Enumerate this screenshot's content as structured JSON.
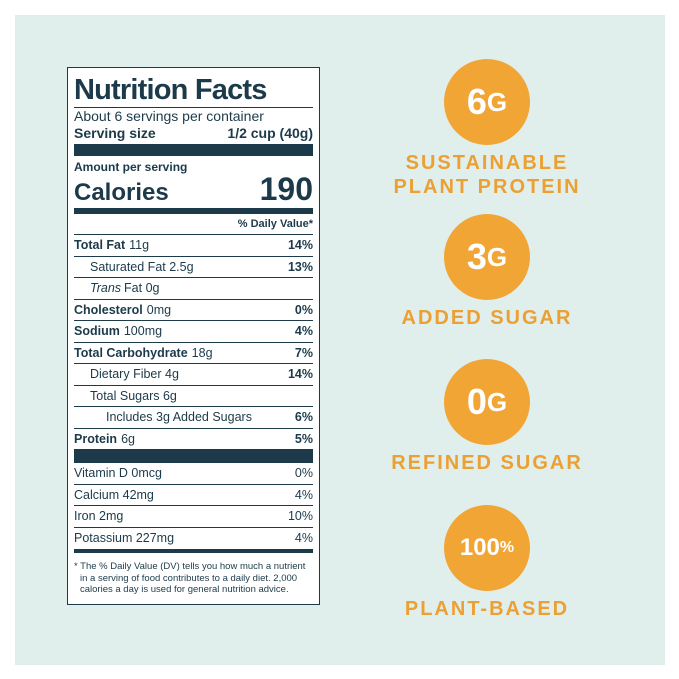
{
  "label": {
    "title": "Nutrition Facts",
    "servings": "About 6 servings per container",
    "serving_size_label": "Serving size",
    "serving_size": "1/2 cup (40g)",
    "amount_per_serving": "Amount per serving",
    "calories_label": "Calories",
    "calories": "190",
    "dv_header": "% Daily Value*",
    "rows": [
      {
        "name": "Total Fat",
        "amount": "11g",
        "dv": "14%",
        "bold": true,
        "indent": 0
      },
      {
        "name": "Saturated Fat 2.5g",
        "dv": "13%",
        "bold": false,
        "indent": 1
      },
      {
        "italic": "Trans",
        "name": "Fat 0g",
        "bold": false,
        "indent": 1
      },
      {
        "name": "Cholesterol",
        "amount": "0mg",
        "dv": "0%",
        "bold": true,
        "indent": 0
      },
      {
        "name": "Sodium",
        "amount": "100mg",
        "dv": "4%",
        "bold": true,
        "indent": 0
      },
      {
        "name": "Total Carbohydrate",
        "amount": "18g",
        "dv": "7%",
        "bold": true,
        "indent": 0
      },
      {
        "name": "Dietary Fiber 4g",
        "dv": "14%",
        "bold": false,
        "indent": 1
      },
      {
        "name": "Total Sugars 6g",
        "bold": false,
        "indent": 1
      },
      {
        "name": "Includes 3g Added Sugars",
        "dv": "6%",
        "bold": false,
        "indent": 2
      },
      {
        "name": "Protein",
        "amount": "6g",
        "dv": "5%",
        "bold": true,
        "indent": 0
      }
    ],
    "vitamins": [
      {
        "name": "Vitamin D 0mcg",
        "dv": "0%"
      },
      {
        "name": "Calcium 42mg",
        "dv": "4%"
      },
      {
        "name": "Iron 2mg",
        "dv": "10%"
      },
      {
        "name": "Potassium 227mg",
        "dv": "4%"
      }
    ],
    "footnote": "* The % Daily Value (DV) tells you how much a nutrient in a serving of food contributes to a daily diet. 2,000 calories a day is used for general nutrition advice."
  },
  "claims": [
    {
      "amount": "6",
      "unit": "G",
      "lines": [
        "SUSTAINABLE",
        "PLANT PROTEIN"
      ]
    },
    {
      "amount": "3",
      "unit": "G",
      "lines": [
        "ADDED SUGAR"
      ]
    },
    {
      "amount": "0",
      "unit": "G",
      "lines": [
        "REFINED SUGAR"
      ]
    },
    {
      "amount": "100",
      "unit": "%",
      "lines": [
        "PLANT-BASED"
      ]
    }
  ]
}
